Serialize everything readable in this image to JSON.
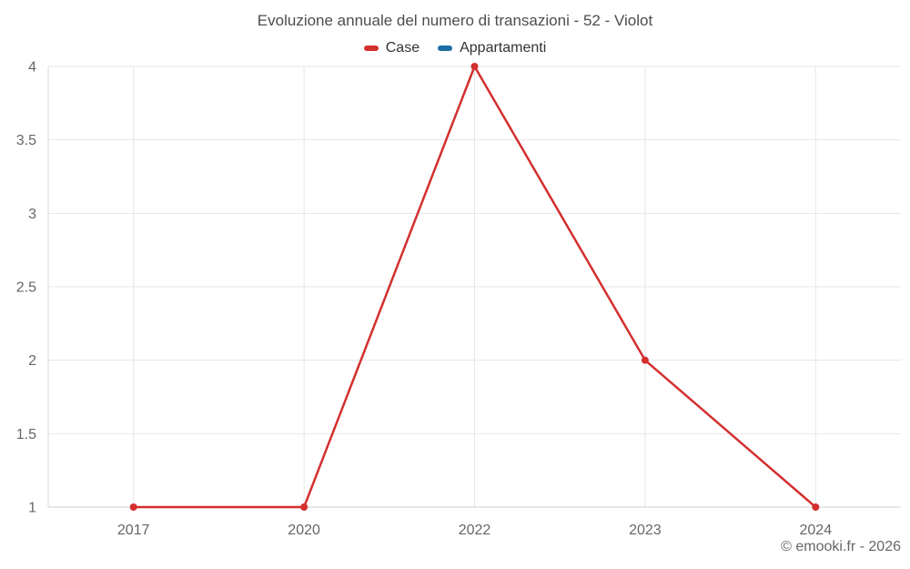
{
  "title": "Evoluzione annuale del numero di transazioni - 52 - Violot",
  "legend": {
    "items": [
      {
        "label": "Case",
        "color": "#d32f2f"
      },
      {
        "label": "Appartamenti",
        "color": "#1c6ea4"
      }
    ]
  },
  "attribution": "© emooki.fr - 2026",
  "chart_data": {
    "type": "line",
    "title": "Evoluzione annuale del numero di transazioni - 52 - Violot",
    "categories": [
      "2017",
      "2020",
      "2022",
      "2023",
      "2024"
    ],
    "series": [
      {
        "name": "Case",
        "color": "#d32f2f",
        "values": [
          1,
          1,
          4,
          2,
          1
        ]
      },
      {
        "name": "Appartamenti",
        "color": "#1c6ea4",
        "values": []
      }
    ],
    "xlabel": "",
    "ylabel": "",
    "ylim": [
      1,
      4
    ],
    "yticks": [
      1,
      1.5,
      2,
      2.5,
      3,
      3.5,
      4
    ],
    "grid": true,
    "legend_position": "top",
    "attribution": "© emooki.fr - 2026"
  }
}
